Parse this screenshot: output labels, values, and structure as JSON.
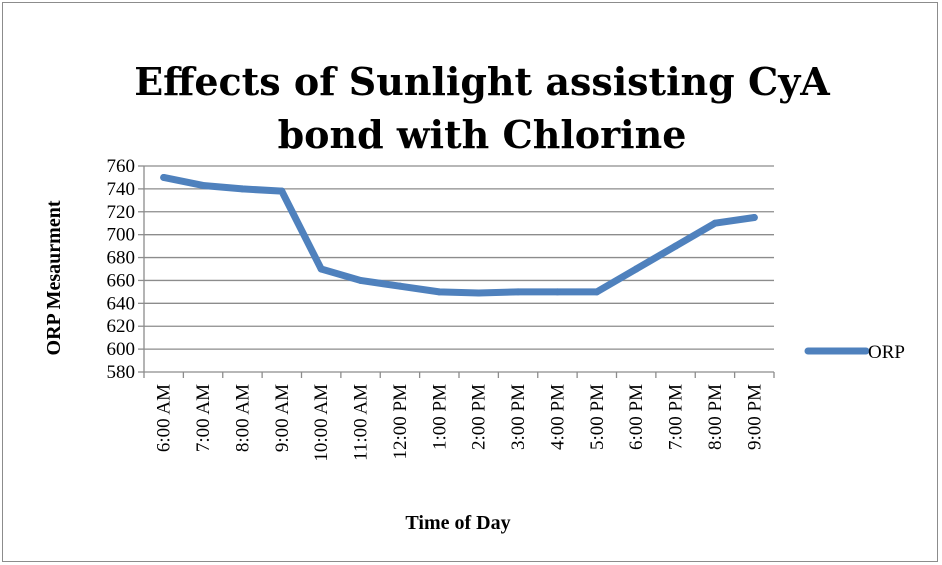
{
  "chart_data": {
    "type": "line",
    "title_lines": [
      "Effects of Sunlight assisting CyA",
      "bond with Chlorine"
    ],
    "xlabel": "Time of Day",
    "ylabel": "ORP Mesaurment",
    "categories": [
      "6:00 AM",
      "7:00 AM",
      "8:00 AM",
      "9:00 AM",
      "10:00 AM",
      "11:00 AM",
      "12:00 PM",
      "1:00 PM",
      "2:00 PM",
      "3:00 PM",
      "4:00 PM",
      "5:00 PM",
      "6:00 PM",
      "7:00 PM",
      "8:00 PM",
      "9:00 PM"
    ],
    "series": [
      {
        "name": "ORP",
        "values": [
          750,
          743,
          740,
          738,
          670,
          660,
          655,
          650,
          649,
          650,
          650,
          650,
          670,
          690,
          710,
          715
        ],
        "color": "#4f81bd"
      }
    ],
    "ylim": [
      580,
      760
    ],
    "yticks": [
      580,
      600,
      620,
      640,
      660,
      680,
      700,
      720,
      740,
      760
    ],
    "grid": true,
    "legend_position": "right"
  }
}
